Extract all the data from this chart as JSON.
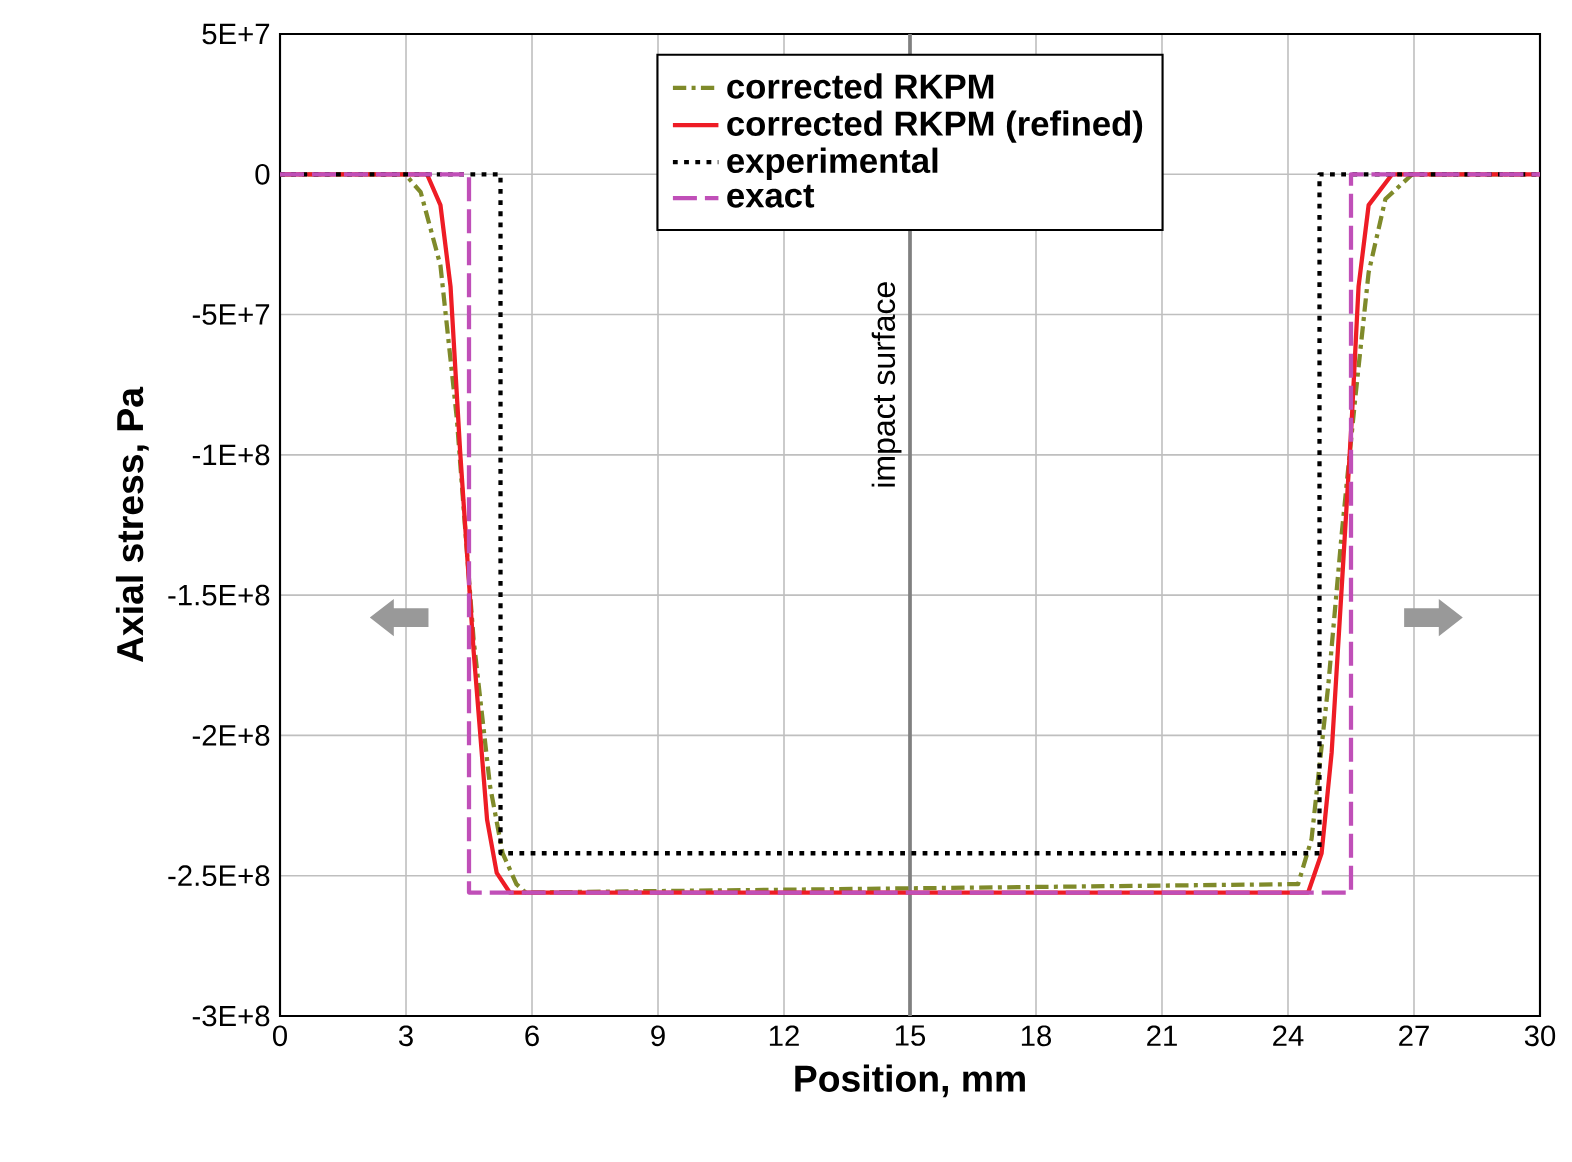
{
  "chart_data": {
    "type": "line",
    "xlabel": "Position, mm",
    "ylabel": "Axial stress, Pa",
    "xlim": [
      0,
      30
    ],
    "xticks": [
      0,
      3,
      6,
      9,
      12,
      15,
      18,
      21,
      24,
      27,
      30
    ],
    "ylim": [
      -300000000,
      50000000
    ],
    "yticks": [
      {
        "value": -300000000,
        "label": "-3E+8"
      },
      {
        "value": -250000000,
        "label": "-2.5E+8"
      },
      {
        "value": -200000000,
        "label": "-2E+8"
      },
      {
        "value": -150000000,
        "label": "-1.5E+8"
      },
      {
        "value": -100000000,
        "label": "-1E+8"
      },
      {
        "value": -50000000,
        "label": "-5E+7"
      },
      {
        "value": 0,
        "label": "0"
      },
      {
        "value": 50000000,
        "label": "5E+7"
      }
    ],
    "grid": true,
    "legend": "top",
    "ref_lines": [
      {
        "axis": "x",
        "value": 15,
        "label": "impact surface",
        "color": "#808080"
      }
    ],
    "series": [
      {
        "name": "corrected RKPM",
        "color": "#7f8a2a",
        "line_style": "dashdot",
        "x": [
          0,
          2.98,
          3.35,
          3.82,
          4.21,
          4.61,
          5.0,
          5.3,
          5.63,
          5.85,
          24.24,
          24.56,
          24.96,
          25.28,
          25.6,
          25.92,
          26.32,
          26.96,
          30
        ],
        "values": [
          0,
          0,
          -6400000,
          -32500000,
          -87000000,
          -166000000,
          -218000000,
          -242000000,
          -253000000,
          -256000000,
          -253000000,
          -237000000,
          -182000000,
          -128000000,
          -80000000,
          -35000000,
          -8800000,
          0,
          0
        ]
      },
      {
        "name": "corrected RKPM (refined)",
        "color": "#ee1c25",
        "line_style": "solid",
        "x": [
          0,
          3.5,
          3.82,
          4.06,
          4.29,
          4.61,
          4.93,
          5.16,
          5.47,
          24.48,
          24.8,
          25.04,
          25.28,
          25.52,
          25.68,
          25.92,
          26.48,
          30
        ],
        "values": [
          0,
          0,
          -11000000,
          -40000000,
          -99000000,
          -170000000,
          -230000000,
          -249000000,
          -256000000,
          -256000000,
          -242000000,
          -206000000,
          -147000000,
          -87000000,
          -40000000,
          -11000000,
          0,
          0
        ]
      },
      {
        "name": "experimental",
        "color": "#000000",
        "line_style": "dotted",
        "x": [
          0,
          5.25,
          5.25,
          24.75,
          24.75,
          30
        ],
        "values": [
          0,
          0,
          -242000000,
          -242000000,
          0,
          0
        ]
      },
      {
        "name": "exact",
        "color": "#c04fb8",
        "line_style": "dashed",
        "x": [
          0,
          4.5,
          4.5,
          25.5,
          25.5,
          30
        ],
        "values": [
          0,
          0,
          -256000000,
          -256000000,
          0,
          0
        ]
      }
    ]
  }
}
